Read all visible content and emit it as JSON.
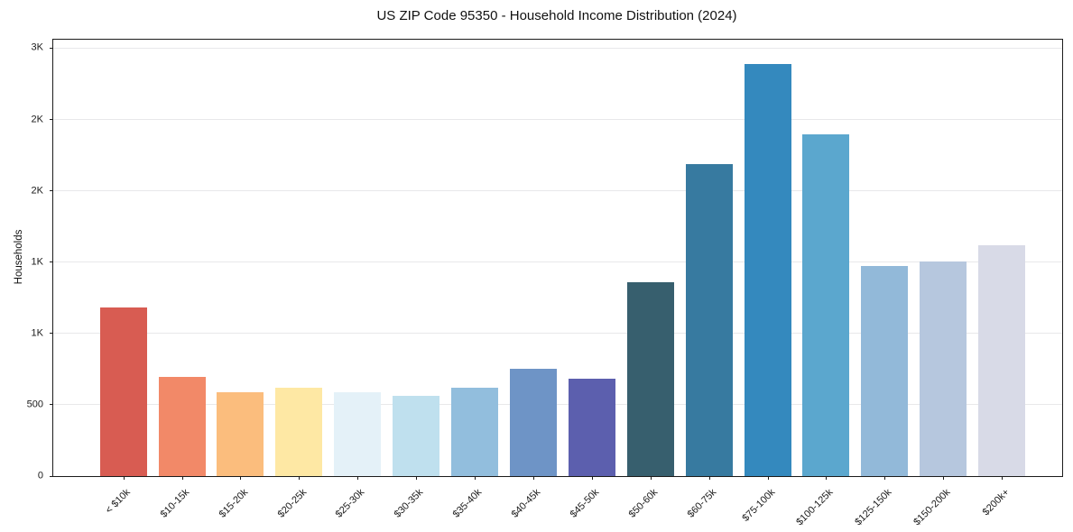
{
  "header": {
    "title": "US ZIP Code 95350 - Household Income Distribution (2024)"
  },
  "chart_data": {
    "type": "bar",
    "title": "US ZIP Code 95350 - Household Income Distribution (2024)",
    "xlabel": "",
    "ylabel": "Households",
    "categories": [
      "< $10k",
      "$10-15k",
      "$15-20k",
      "$20-25k",
      "$25-30k",
      "$30-35k",
      "$35-40k",
      "$40-45k",
      "$45-50k",
      "$50-60k",
      "$60-75k",
      "$75-100k",
      "$100-125k",
      "$125-150k",
      "$150-200k",
      "$200k+"
    ],
    "values": [
      1185,
      695,
      585,
      620,
      590,
      560,
      620,
      750,
      680,
      1360,
      2190,
      2890,
      2395,
      1475,
      1505,
      1620
    ],
    "bar_colors": [
      "#d85c52",
      "#f28968",
      "#fbbd7d",
      "#fee8a4",
      "#e4f1f8",
      "#bfe0ee",
      "#92bedd",
      "#6e94c6",
      "#5c5fae",
      "#375f6e",
      "#377aa0",
      "#3489be",
      "#5ba7ce",
      "#92b9d9",
      "#b6c7de",
      "#d8dae7"
    ],
    "ylim": [
      0,
      3060
    ],
    "yticks": {
      "values": [
        0,
        500,
        1000,
        1500,
        2000,
        2500,
        3000
      ],
      "labels": [
        "0",
        "500",
        "1K",
        "1K",
        "2K",
        "2K",
        "3K"
      ]
    },
    "grid": "horizontal",
    "grid_color": "#e8e8ea",
    "background_color": "#ffffff",
    "legend": "none"
  }
}
